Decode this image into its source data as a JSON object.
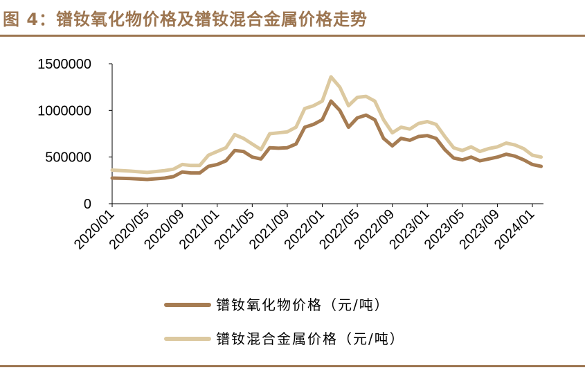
{
  "figure": {
    "title": "图 4：镨钕氧化物价格及镨钕混合金属价格走势"
  },
  "colors": {
    "frame": "#9c7550",
    "oxide": "#a67c52",
    "metal": "#dcc9a0"
  },
  "chart_data": {
    "type": "line",
    "title": "图 4：镨钕氧化物价格及镨钕混合金属价格走势",
    "xlabel": "",
    "ylabel": "",
    "ylim": [
      0,
      1500000
    ],
    "y_ticks": [
      "0",
      "500000",
      "1000000",
      "1500000"
    ],
    "x_ticks": [
      "2020/01",
      "2020/05",
      "2020/09",
      "2021/01",
      "2021/05",
      "2021/09",
      "2022/01",
      "2022/05",
      "2022/09",
      "2023/01",
      "2023/05",
      "2023/09",
      "2024/01"
    ],
    "grid": false,
    "legend_position": "bottom",
    "x": [
      "2020/01",
      "2020/03",
      "2020/05",
      "2020/07",
      "2020/08",
      "2020/09",
      "2020/10",
      "2020/11",
      "2020/12",
      "2021/01",
      "2021/02",
      "2021/03",
      "2021/04",
      "2021/05",
      "2021/06",
      "2021/07",
      "2021/08",
      "2021/09",
      "2021/10",
      "2021/11",
      "2021/12",
      "2022/01",
      "2022/02",
      "2022/03",
      "2022/04",
      "2022/05",
      "2022/06",
      "2022/07",
      "2022/08",
      "2022/09",
      "2022/10",
      "2022/11",
      "2022/12",
      "2023/01",
      "2023/02",
      "2023/03",
      "2023/04",
      "2023/05",
      "2023/06",
      "2023/07",
      "2023/08",
      "2023/09",
      "2023/10",
      "2023/11",
      "2023/12",
      "2024/01",
      "2024/02"
    ],
    "series": [
      {
        "name": "镨钕氧化物价格（元/吨）",
        "values": [
          275000,
          270000,
          260000,
          275000,
          290000,
          340000,
          330000,
          330000,
          400000,
          420000,
          460000,
          570000,
          560000,
          500000,
          480000,
          600000,
          595000,
          600000,
          640000,
          820000,
          850000,
          900000,
          1100000,
          1000000,
          820000,
          920000,
          950000,
          900000,
          700000,
          620000,
          700000,
          680000,
          720000,
          730000,
          700000,
          580000,
          490000,
          470000,
          500000,
          460000,
          480000,
          500000,
          530000,
          510000,
          470000,
          420000,
          400000
        ]
      },
      {
        "name": "镨钕混合金属价格（元/吨）",
        "values": [
          360000,
          350000,
          335000,
          355000,
          370000,
          420000,
          410000,
          410000,
          520000,
          560000,
          600000,
          740000,
          700000,
          640000,
          580000,
          750000,
          760000,
          770000,
          820000,
          1020000,
          1050000,
          1100000,
          1360000,
          1250000,
          1050000,
          1140000,
          1150000,
          1100000,
          900000,
          760000,
          820000,
          800000,
          860000,
          880000,
          850000,
          720000,
          600000,
          570000,
          610000,
          560000,
          590000,
          610000,
          650000,
          630000,
          590000,
          520000,
          500000
        ]
      }
    ]
  }
}
